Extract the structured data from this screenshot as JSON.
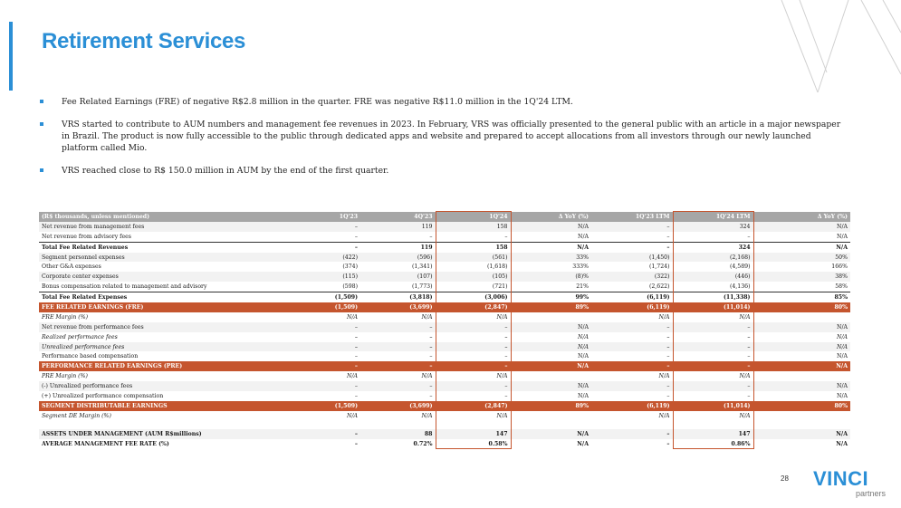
{
  "page": {
    "title": "Retirement Services",
    "page_number": "28"
  },
  "brand": {
    "logo_main": "VINCI",
    "logo_sub": "partners",
    "accent_color": "#2b8fd6",
    "table_highlight_color": "#c5552e"
  },
  "bullets": [
    "Fee Related Earnings (FRE) of negative R$2.8 million in the quarter. FRE was negative R$11.0 million in the 1Q'24 LTM.",
    "VRS started to contribute to AUM numbers and management fee revenues in 2023. In February, VRS was officially presented to the general public with an article in a major newspaper in Brazil. The product is now fully accessible to the public through dedicated apps and website and prepared to accept allocations from all investors through our newly launched platform called Mio.",
    "VRS reached close to R$ 150.0 million in AUM by the end of the first quarter."
  ],
  "table": {
    "header": [
      "(R$ thousands, unless mentioned)",
      "1Q'23",
      "4Q'23",
      "1Q'24",
      "Δ YoY (%)",
      "1Q'23 LTM",
      "1Q'24 LTM",
      "Δ YoY (%)"
    ],
    "rows": [
      {
        "style": "shade",
        "cells": [
          "Net revenue from management fees",
          "–",
          "119",
          "158",
          "N/A",
          "–",
          "324",
          "N/A"
        ]
      },
      {
        "style": "",
        "cells": [
          "Net revenue from advisory fees",
          "–",
          "–",
          "–",
          "N/A",
          "–",
          "–",
          "N/A"
        ]
      },
      {
        "style": "total",
        "cells": [
          "Total Fee Related Revenues",
          "–",
          "119",
          "158",
          "N/A",
          "–",
          "324",
          "N/A"
        ]
      },
      {
        "style": "shade",
        "cells": [
          "Segment personnel expenses",
          "(422)",
          "(596)",
          "(561)",
          "33%",
          "(1,450)",
          "(2,168)",
          "50%"
        ]
      },
      {
        "style": "",
        "cells": [
          "Other G&A expenses",
          "(374)",
          "(1,341)",
          "(1,618)",
          "333%",
          "(1,724)",
          "(4,589)",
          "166%"
        ]
      },
      {
        "style": "shade",
        "cells": [
          "Corporate center expenses",
          "(115)",
          "(107)",
          "(105)",
          "(8)%",
          "(322)",
          "(446)",
          "38%"
        ]
      },
      {
        "style": "",
        "cells": [
          "Bonus compensation related to management and advisory",
          "(598)",
          "(1,773)",
          "(721)",
          "21%",
          "(2,622)",
          "(4,136)",
          "58%"
        ]
      },
      {
        "style": "total",
        "cells": [
          "Total Fee Related Expenses",
          "(1,509)",
          "(3,818)",
          "(3,006)",
          "99%",
          "(6,119)",
          "(11,338)",
          "85%"
        ]
      },
      {
        "style": "orange",
        "cells": [
          "FEE RELATED EARNINGS (FRE)",
          "(1,509)",
          "(3,699)",
          "(2,847)",
          "89%",
          "(6,119)",
          "(11,014)",
          "80%"
        ]
      },
      {
        "style": "ital",
        "cells": [
          "FRE Margin (%)",
          "N/A",
          "N/A",
          "N/A",
          "",
          "N/A",
          "N/A",
          ""
        ]
      },
      {
        "style": "shade",
        "cells": [
          "Net revenue from performance fees",
          "–",
          "–",
          "–",
          "N/A",
          "–",
          "–",
          "N/A"
        ]
      },
      {
        "style": "ital",
        "cells": [
          "Realized performance fees",
          "–",
          "–",
          "–",
          "N/A",
          "–",
          "–",
          "N/A"
        ]
      },
      {
        "style": "ital shade",
        "cells": [
          "Unrealized performance fees",
          "–",
          "–",
          "–",
          "N/A",
          "–",
          "–",
          "N/A"
        ]
      },
      {
        "style": "",
        "cells": [
          "Performance based compensation",
          "–",
          "–",
          "–",
          "N/A",
          "–",
          "–",
          "N/A"
        ]
      },
      {
        "style": "orange",
        "cells": [
          "PERFORMANCE RELATED EARNINGS (PRE)",
          "–",
          "–",
          "–",
          "N/A",
          "–",
          "–",
          "N/A"
        ]
      },
      {
        "style": "ital",
        "cells": [
          "PRE Margin (%)",
          "N/A",
          "N/A",
          "N/A",
          "",
          "N/A",
          "N/A",
          ""
        ]
      },
      {
        "style": "shade",
        "cells": [
          "(-) Unrealized performance fees",
          "–",
          "–",
          "–",
          "N/A",
          "–",
          "–",
          "N/A"
        ]
      },
      {
        "style": "",
        "cells": [
          "(+) Unrealized performance compensation",
          "–",
          "–",
          "–",
          "N/A",
          "–",
          "–",
          "N/A"
        ]
      },
      {
        "style": "orange",
        "cells": [
          "SEGMENT DISTRIBUTABLE EARNINGS",
          "(1,509)",
          "(3,699)",
          "(2,847)",
          "89%",
          "(6,119)",
          "(11,014)",
          "80%"
        ]
      },
      {
        "style": "ital",
        "cells": [
          "Segment DE Margin (%)",
          "N/A",
          "N/A",
          "N/A",
          "",
          "N/A",
          "N/A",
          ""
        ]
      },
      {
        "style": "blank",
        "cells": [
          "",
          "",
          "",
          "",
          "",
          "",
          "",
          ""
        ]
      },
      {
        "style": "bold shade",
        "cells": [
          "ASSETS UNDER MANAGEMENT (AUM R$millions)",
          "–",
          "88",
          "147",
          "N/A",
          "–",
          "147",
          "N/A"
        ]
      },
      {
        "style": "bold last",
        "cells": [
          "AVERAGE MANAGEMENT FEE RATE (%)",
          "–",
          "0.72%",
          "0.58%",
          "N/A",
          "–",
          "0.86%",
          "N/A"
        ]
      }
    ]
  }
}
